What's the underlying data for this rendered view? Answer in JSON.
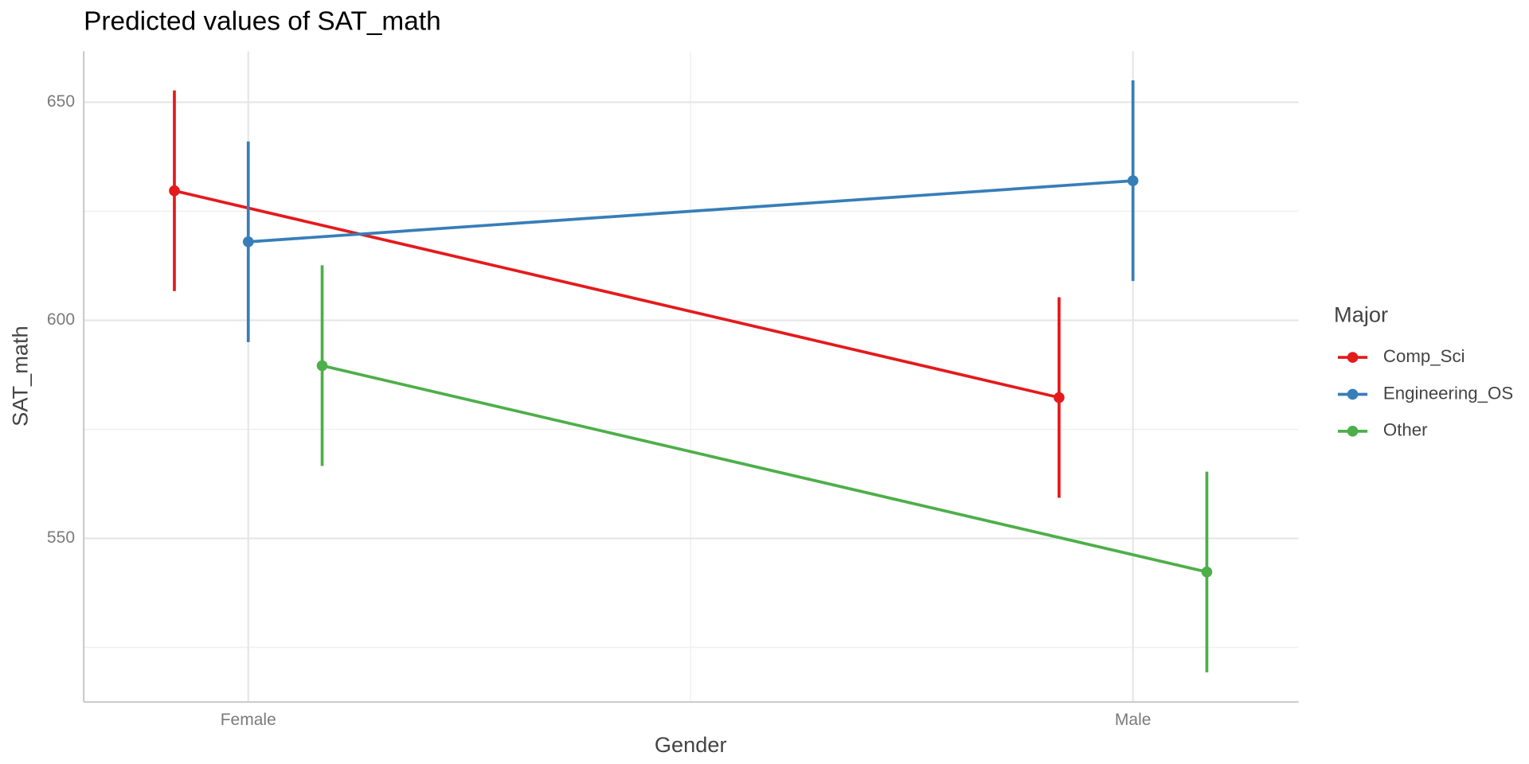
{
  "chart_data": {
    "type": "line",
    "title": "Predicted values of SAT_math",
    "x_label": "Gender",
    "y_label": "SAT_math",
    "legend_title": "Major",
    "categories": [
      "Female",
      "Male"
    ],
    "series": [
      {
        "name": "Comp_Sci",
        "color": "#e41a1c",
        "values": [
          629.7,
          582.3
        ],
        "errors": [
          23,
          23
        ]
      },
      {
        "name": "Engineering_OS",
        "color": "#377eb8",
        "values": [
          618.0,
          632.0
        ],
        "errors": [
          23,
          23
        ]
      },
      {
        "name": "Other",
        "color": "#4daf4a",
        "values": [
          589.6,
          542.3
        ],
        "errors": [
          23,
          23
        ]
      }
    ],
    "ylim": [
      512.5,
      661.7
    ],
    "yticks": [
      550,
      600,
      650
    ],
    "minor_yticks": [
      525,
      575,
      625
    ],
    "grid": true,
    "legend_position": "right"
  }
}
